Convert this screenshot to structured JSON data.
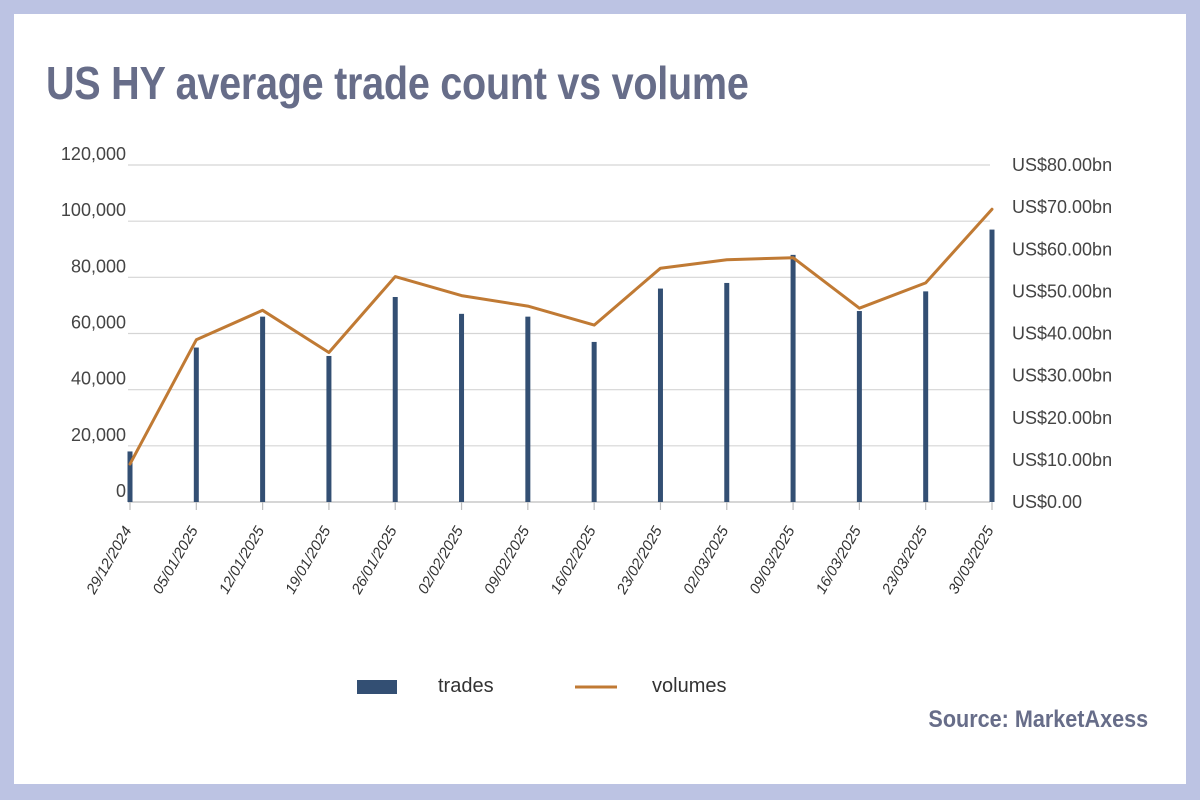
{
  "title": "US HY average trade count vs volume",
  "source": "Source: MarketAxess",
  "colors": {
    "trades": "#334f73",
    "volumes": "#c07a34",
    "grid": "#d5d5d5",
    "title": "#676d89",
    "frame": "#bcc3e3"
  },
  "chart_data": {
    "type": "bar",
    "x": [
      "29/12/2024",
      "05/01/2025",
      "12/01/2025",
      "19/01/2025",
      "26/01/2025",
      "02/02/2025",
      "09/02/2025",
      "16/02/2025",
      "23/02/2025",
      "02/03/2025",
      "09/03/2025",
      "16/03/2025",
      "23/03/2025",
      "30/03/2025"
    ],
    "series": [
      {
        "name": "trades",
        "type": "bar",
        "axis": "left",
        "values": [
          18000,
          55000,
          66000,
          52000,
          73000,
          67000,
          66000,
          57000,
          76000,
          78000,
          88000,
          68000,
          75000,
          97000
        ]
      },
      {
        "name": "volumes",
        "type": "line",
        "axis": "right",
        "values": [
          9.0,
          38.5,
          45.5,
          35.5,
          53.5,
          49.0,
          46.5,
          42.0,
          55.5,
          57.5,
          58.0,
          46.0,
          52.0,
          69.5
        ]
      }
    ],
    "y_left": {
      "min": 0,
      "max": 120000,
      "ticks": [
        "0",
        "20,000",
        "40,000",
        "60,000",
        "80,000",
        "100,000",
        "120,000"
      ]
    },
    "y_right": {
      "min": 0,
      "max": 80,
      "unit": "US$bn",
      "ticks": [
        "US$0.00",
        "US$10.00bn",
        "US$20.00bn",
        "US$30.00bn",
        "US$40.00bn",
        "US$50.00bn",
        "US$60.00bn",
        "US$70.00bn",
        "US$80.00bn"
      ]
    },
    "grid": true,
    "legend": {
      "position": "bottom-center",
      "entries": [
        "trades",
        "volumes"
      ]
    }
  }
}
